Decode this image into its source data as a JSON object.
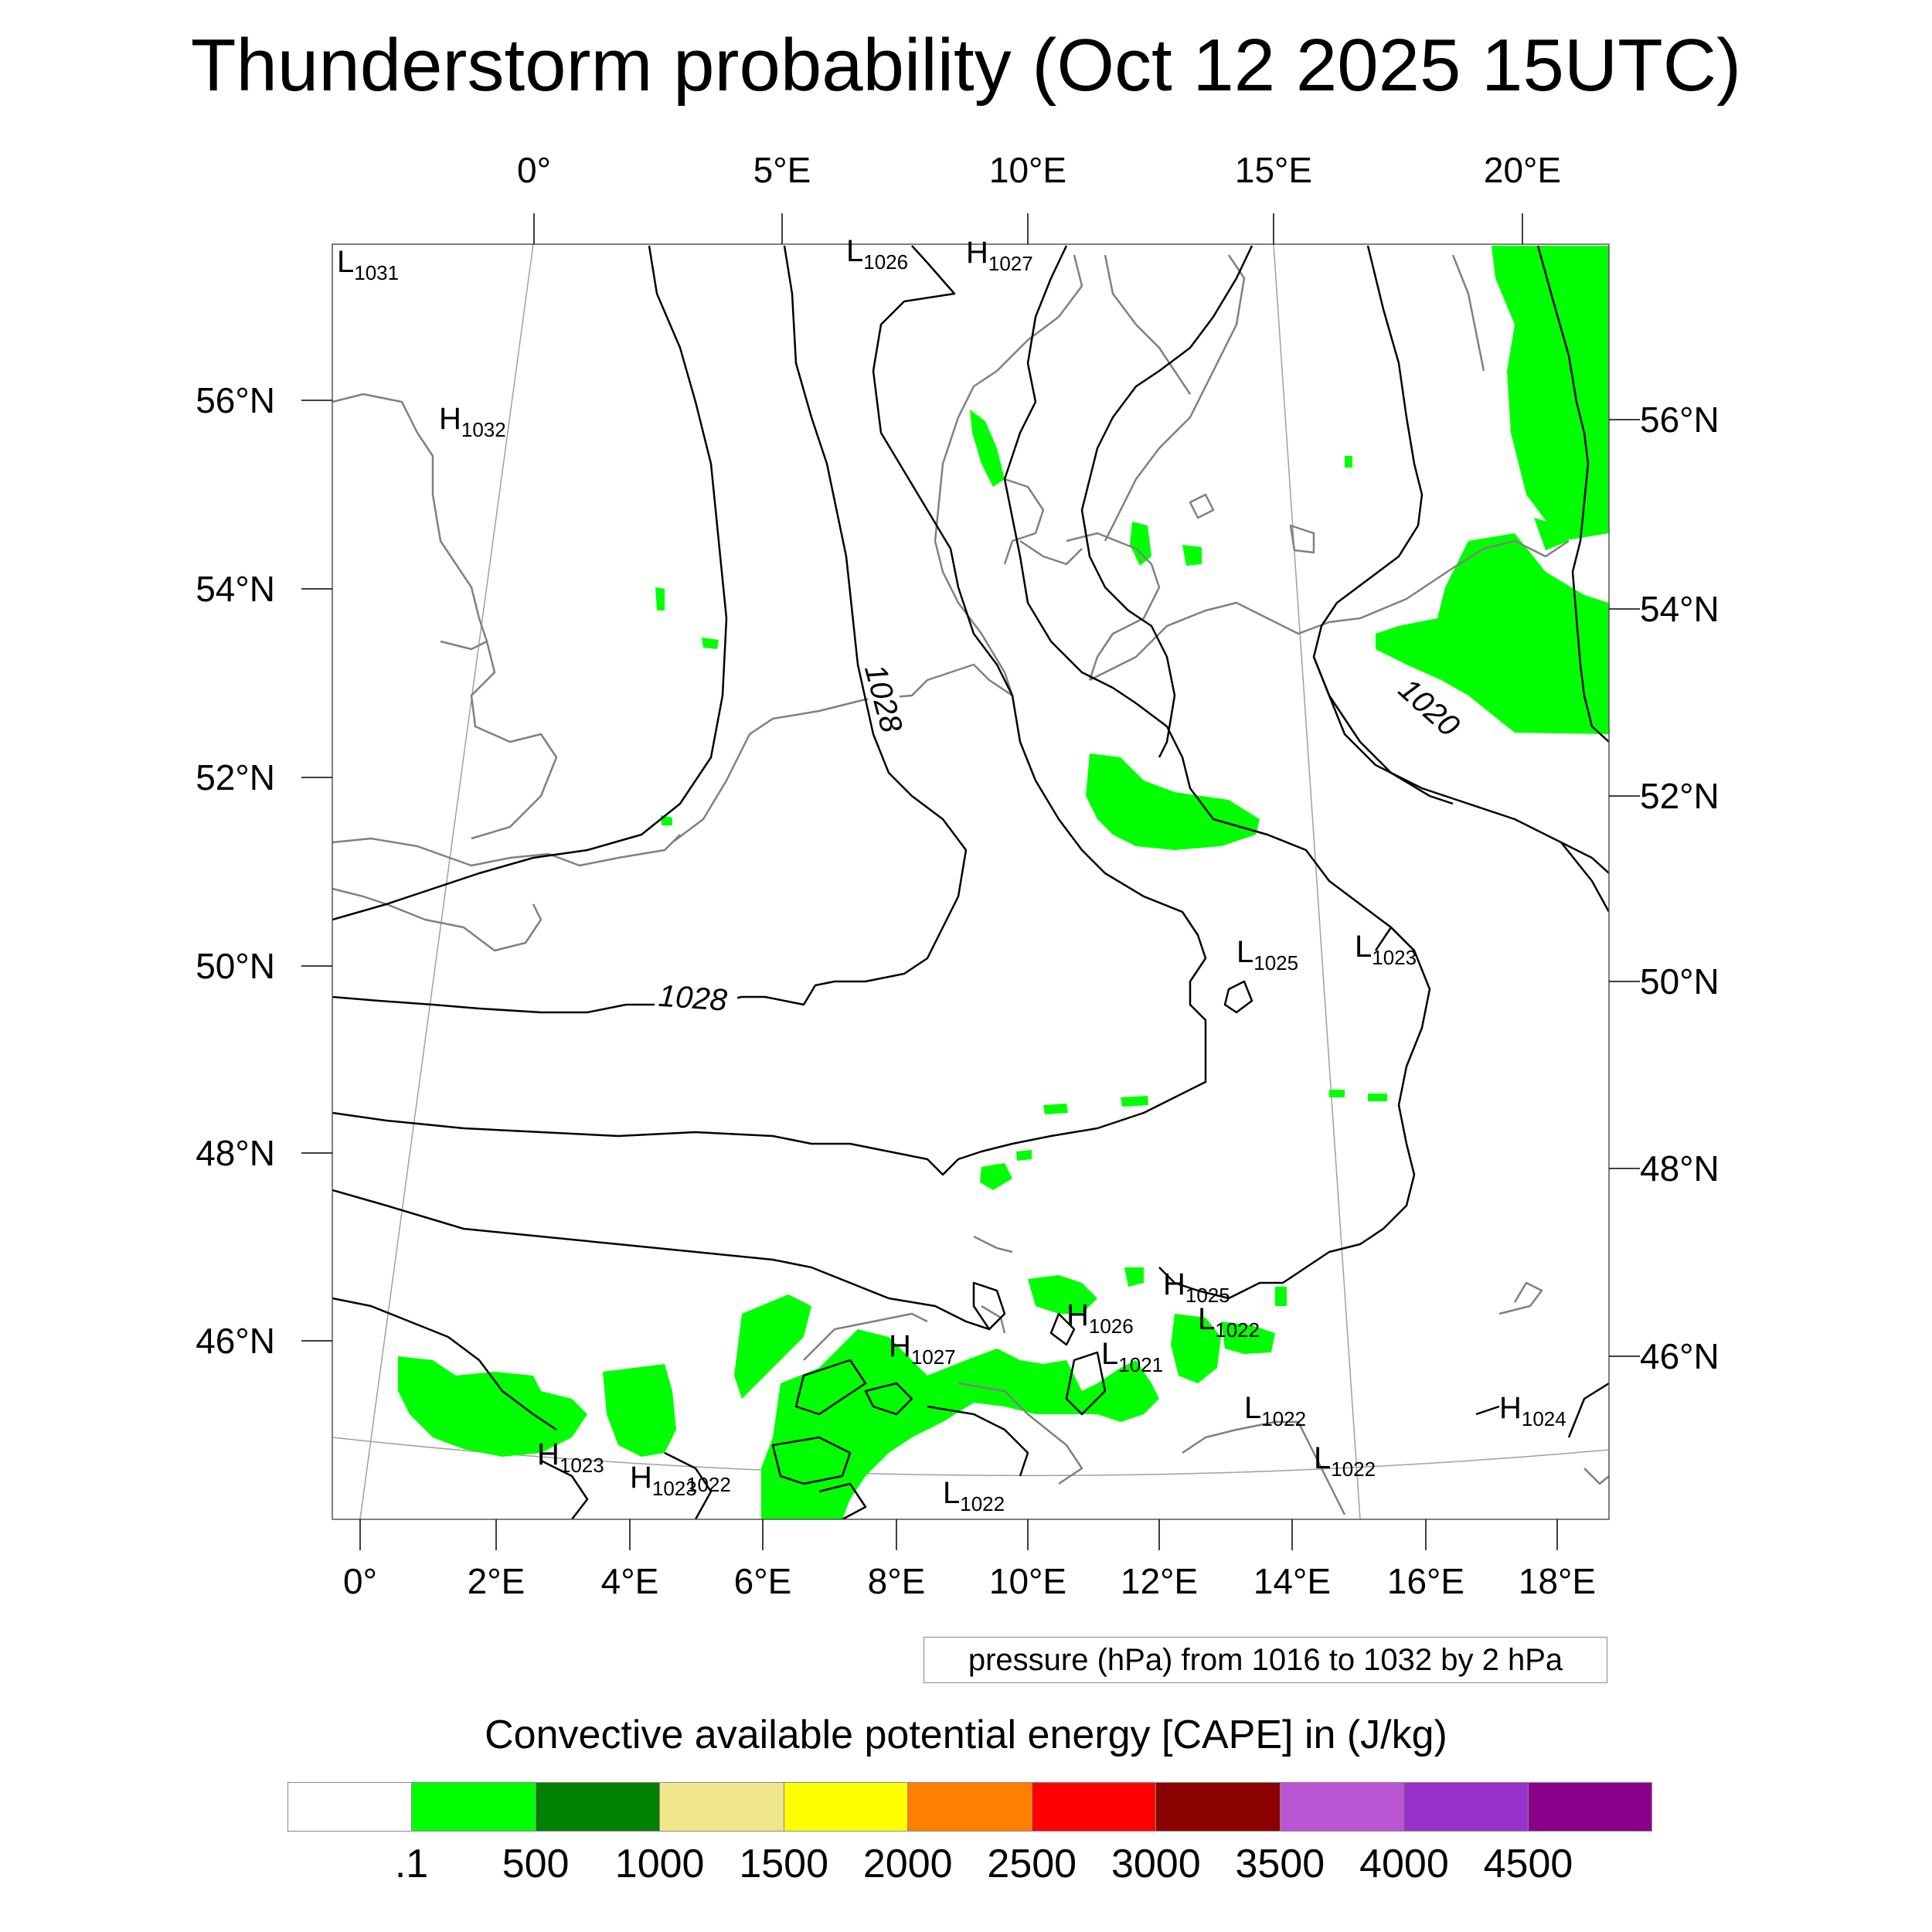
{
  "title": "Thunderstorm probability (Oct 12 2025 15UTC)",
  "map": {
    "top_longitude_labels": [
      "0°",
      "5°E",
      "10°E",
      "15°E",
      "20°E"
    ],
    "bottom_longitude_labels": [
      "0°",
      "2°E",
      "4°E",
      "6°E",
      "8°E",
      "10°E",
      "12°E",
      "14°E",
      "16°E",
      "18°E"
    ],
    "left_latitude_labels": [
      "56°N",
      "54°N",
      "52°N",
      "50°N",
      "48°N",
      "46°N"
    ],
    "right_latitude_labels": [
      "56°N",
      "54°N",
      "52°N",
      "50°N",
      "48°N",
      "46°N"
    ],
    "pressure_centers": [
      {
        "type": "L",
        "value": "1031"
      },
      {
        "type": "L",
        "value": "1026"
      },
      {
        "type": "H",
        "value": "1027"
      },
      {
        "type": "H",
        "value": "1032"
      },
      {
        "type": "L",
        "value": "1025"
      },
      {
        "type": "L",
        "value": "1023"
      },
      {
        "type": "H",
        "value": "1025"
      },
      {
        "type": "H",
        "value": "1026"
      },
      {
        "type": "L",
        "value": "1022"
      },
      {
        "type": "H",
        "value": "1027"
      },
      {
        "type": "L",
        "value": "1021"
      },
      {
        "type": "L",
        "value": "1022"
      },
      {
        "type": "H",
        "value": "1024"
      },
      {
        "type": "H",
        "value": "1023"
      },
      {
        "type": "H",
        "value": "1023"
      },
      {
        "type": "L",
        "value": "1022"
      },
      {
        "type": "L",
        "value": "1022"
      },
      {
        "type": "L",
        "value": "1022"
      }
    ],
    "contour_labels": [
      "1028",
      "1028",
      "1020"
    ],
    "colors": {
      "cape_low": "#00ff00",
      "isobar": "#000000",
      "coastline": "#808080",
      "graticule": "#a0a0a0"
    }
  },
  "info_box": "pressure (hPa) from 1016 to 1032 by 2 hPa",
  "colorbar": {
    "title": "Convective available potential energy [CAPE] in (J/kg)",
    "colors": [
      "#ffffff",
      "#00ff00",
      "#008000",
      "#f0e68c",
      "#ffff00",
      "#ff8000",
      "#ff0000",
      "#8b0000",
      "#ba55d3",
      "#9932cc",
      "#8b008b"
    ],
    "labels": [
      ".1",
      "500",
      "1000",
      "1500",
      "2000",
      "2500",
      "3000",
      "3500",
      "4000",
      "4500"
    ]
  }
}
